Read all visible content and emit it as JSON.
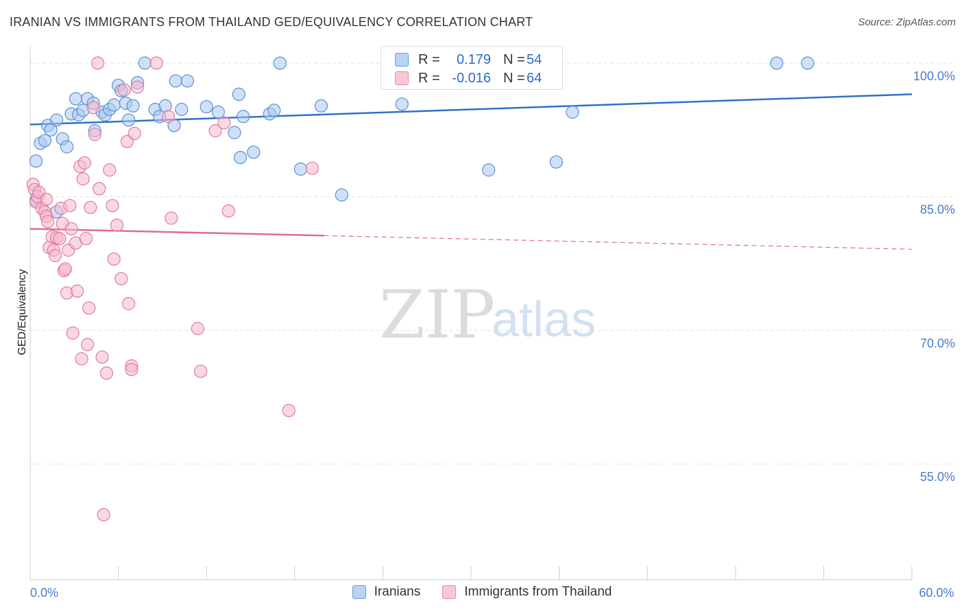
{
  "title": "IRANIAN VS IMMIGRANTS FROM THAILAND GED/EQUIVALENCY CORRELATION CHART",
  "source": "Source: ZipAtlas.com",
  "watermark": {
    "zip": "ZIP",
    "atlas": "atlas"
  },
  "legend": {
    "series1": {
      "r_label": "R =",
      "r_value": "0.179",
      "n_label": "N =",
      "n_value": "54"
    },
    "series2": {
      "r_label": "R =",
      "r_value": "-0.016",
      "n_label": "N =",
      "n_value": "64"
    }
  },
  "colors": {
    "blue_fill": "#a9c8f0",
    "blue_stroke": "#5b8fd6",
    "blue_line": "#2f70c9",
    "pink_fill": "#f6b8cc",
    "pink_stroke": "#e07a9c",
    "pink_line": "#e06a94",
    "grid": "#e2e2e2",
    "tick_text": "#4a7cc7"
  },
  "chart_data": {
    "type": "scatter",
    "xlabel": "",
    "ylabel": "GED/Equivalency",
    "xlim": [
      0,
      60
    ],
    "ylim": [
      42,
      102
    ],
    "x_tick_labels": [
      {
        "value": 0,
        "label": "0.0%"
      },
      {
        "value": 60,
        "label": "60.0%"
      }
    ],
    "y_ticks": [
      {
        "value": 100,
        "label": "100.0%"
      },
      {
        "value": 85,
        "label": "85.0%"
      },
      {
        "value": 70,
        "label": "70.0%"
      },
      {
        "value": 55,
        "label": "55.0%"
      }
    ],
    "grid": true,
    "legend_position": "top-center",
    "series": [
      {
        "name": "Iranians",
        "color": "#a9c8f0",
        "trend": {
          "x": [
            0,
            60
          ],
          "y": [
            93.1,
            96.5
          ],
          "dashed_from": null
        },
        "points": [
          [
            0.4,
            89.0
          ],
          [
            0.7,
            91.0
          ],
          [
            1.0,
            91.3
          ],
          [
            1.2,
            93.0
          ],
          [
            1.4,
            92.5
          ],
          [
            1.8,
            93.6
          ],
          [
            2.2,
            91.5
          ],
          [
            2.5,
            90.6
          ],
          [
            2.8,
            94.3
          ],
          [
            3.1,
            96.0
          ],
          [
            3.3,
            94.2
          ],
          [
            3.6,
            94.7
          ],
          [
            3.9,
            96.0
          ],
          [
            4.3,
            95.5
          ],
          [
            4.4,
            92.4
          ],
          [
            4.9,
            94.5
          ],
          [
            5.1,
            94.2
          ],
          [
            5.4,
            94.8
          ],
          [
            5.7,
            95.3
          ],
          [
            6.0,
            97.5
          ],
          [
            6.2,
            96.9
          ],
          [
            6.5,
            95.5
          ],
          [
            6.7,
            93.6
          ],
          [
            7.0,
            95.2
          ],
          [
            7.3,
            97.8
          ],
          [
            7.8,
            100.0
          ],
          [
            8.5,
            94.8
          ],
          [
            8.8,
            94.0
          ],
          [
            9.2,
            95.2
          ],
          [
            9.8,
            93.0
          ],
          [
            9.9,
            98.0
          ],
          [
            10.3,
            94.8
          ],
          [
            10.7,
            98.0
          ],
          [
            12.0,
            95.1
          ],
          [
            12.8,
            94.5
          ],
          [
            13.9,
            92.2
          ],
          [
            14.2,
            96.5
          ],
          [
            14.3,
            89.4
          ],
          [
            14.5,
            94.0
          ],
          [
            15.2,
            90.0
          ],
          [
            16.3,
            94.3
          ],
          [
            16.6,
            94.7
          ],
          [
            17.0,
            100.0
          ],
          [
            18.4,
            88.1
          ],
          [
            19.8,
            95.2
          ],
          [
            21.2,
            85.2
          ],
          [
            25.3,
            95.4
          ],
          [
            31.2,
            88.0
          ],
          [
            35.8,
            88.9
          ],
          [
            36.9,
            94.5
          ],
          [
            50.8,
            100.0
          ],
          [
            52.9,
            100.0
          ],
          [
            0.4,
            84.6
          ],
          [
            1.8,
            83.3
          ]
        ]
      },
      {
        "name": "Immigrants from Thailand",
        "color": "#f6b8cc",
        "trend": {
          "x": [
            0,
            60
          ],
          "y": [
            81.4,
            79.1
          ],
          "dashed_from": 20
        },
        "points": [
          [
            0.2,
            86.4
          ],
          [
            0.3,
            85.8
          ],
          [
            0.4,
            84.4
          ],
          [
            0.5,
            85.0
          ],
          [
            0.6,
            85.5
          ],
          [
            0.8,
            83.7
          ],
          [
            1.0,
            83.3
          ],
          [
            1.1,
            82.8
          ],
          [
            1.2,
            82.2
          ],
          [
            1.3,
            79.3
          ],
          [
            1.5,
            80.5
          ],
          [
            1.6,
            79.0
          ],
          [
            1.7,
            78.4
          ],
          [
            1.8,
            80.4
          ],
          [
            2.0,
            80.3
          ],
          [
            2.1,
            83.7
          ],
          [
            2.2,
            82.0
          ],
          [
            2.3,
            76.7
          ],
          [
            2.4,
            76.9
          ],
          [
            2.5,
            74.2
          ],
          [
            2.6,
            79.0
          ],
          [
            2.7,
            84.0
          ],
          [
            2.8,
            81.4
          ],
          [
            2.9,
            69.7
          ],
          [
            3.1,
            79.8
          ],
          [
            3.2,
            74.4
          ],
          [
            3.4,
            88.4
          ],
          [
            3.5,
            66.8
          ],
          [
            3.7,
            88.8
          ],
          [
            3.8,
            80.3
          ],
          [
            3.9,
            68.4
          ],
          [
            4.0,
            72.5
          ],
          [
            4.1,
            83.8
          ],
          [
            4.3,
            95.0
          ],
          [
            4.4,
            92.0
          ],
          [
            4.6,
            100.0
          ],
          [
            4.7,
            85.9
          ],
          [
            4.9,
            67.0
          ],
          [
            5.2,
            65.2
          ],
          [
            5.4,
            88.0
          ],
          [
            5.6,
            84.0
          ],
          [
            5.7,
            78.0
          ],
          [
            5.9,
            81.8
          ],
          [
            6.2,
            75.8
          ],
          [
            6.4,
            97.0
          ],
          [
            6.6,
            91.2
          ],
          [
            6.7,
            73.0
          ],
          [
            6.9,
            66.0
          ],
          [
            6.9,
            65.6
          ],
          [
            7.1,
            92.1
          ],
          [
            7.3,
            97.3
          ],
          [
            8.6,
            100.0
          ],
          [
            9.4,
            94.0
          ],
          [
            9.6,
            82.6
          ],
          [
            11.4,
            70.2
          ],
          [
            11.6,
            65.4
          ],
          [
            12.6,
            92.4
          ],
          [
            13.2,
            93.3
          ],
          [
            13.5,
            83.4
          ],
          [
            17.6,
            61.0
          ],
          [
            19.2,
            88.2
          ],
          [
            5.0,
            49.3
          ],
          [
            3.6,
            87.0
          ],
          [
            1.1,
            84.7
          ]
        ]
      }
    ]
  }
}
